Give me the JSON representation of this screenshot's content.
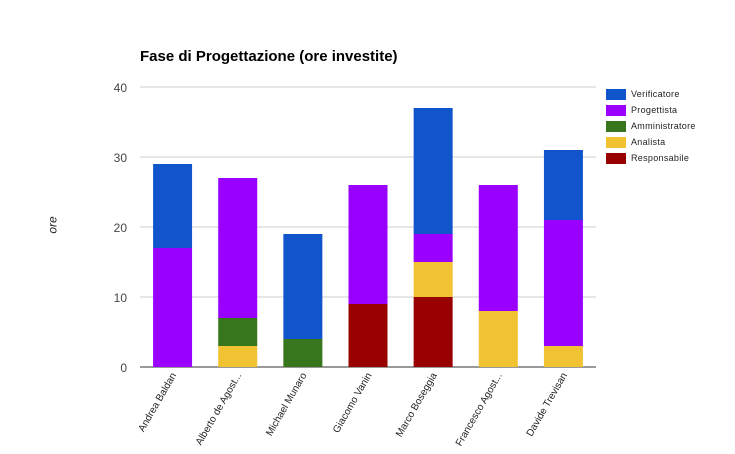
{
  "chart_data": {
    "type": "bar",
    "stacked": true,
    "title": "Fase di Progettazione (ore investite)",
    "xlabel": "",
    "ylabel": "ore",
    "ylim": [
      0,
      40
    ],
    "yticks": [
      0,
      10,
      20,
      30,
      40
    ],
    "grid": true,
    "legend_position": "right",
    "categories": [
      "Andrea Baldan",
      "Alberto de Agost...",
      "Michael Munaro",
      "Giacomo Vanin",
      "Marco Boseggia",
      "Francesco Agost...",
      "Davide Trevisan"
    ],
    "series": [
      {
        "name": "Responsabile",
        "color": "#990000",
        "values": [
          0,
          0,
          0,
          9,
          10,
          0,
          0
        ]
      },
      {
        "name": "Analista",
        "color": "#f1c232",
        "values": [
          0,
          3,
          0,
          0,
          5,
          8,
          3
        ]
      },
      {
        "name": "Amministratore",
        "color": "#38761d",
        "values": [
          0,
          4,
          4,
          0,
          0,
          0,
          0
        ]
      },
      {
        "name": "Progettista",
        "color": "#9900ff",
        "values": [
          17,
          20,
          0,
          17,
          4,
          18,
          18
        ]
      },
      {
        "name": "Verificatore",
        "color": "#1155cc",
        "values": [
          12,
          0,
          15,
          0,
          18,
          0,
          10
        ]
      }
    ],
    "legend_order": [
      "Verificatore",
      "Progettista",
      "Amministratore",
      "Analista",
      "Responsabile"
    ]
  }
}
